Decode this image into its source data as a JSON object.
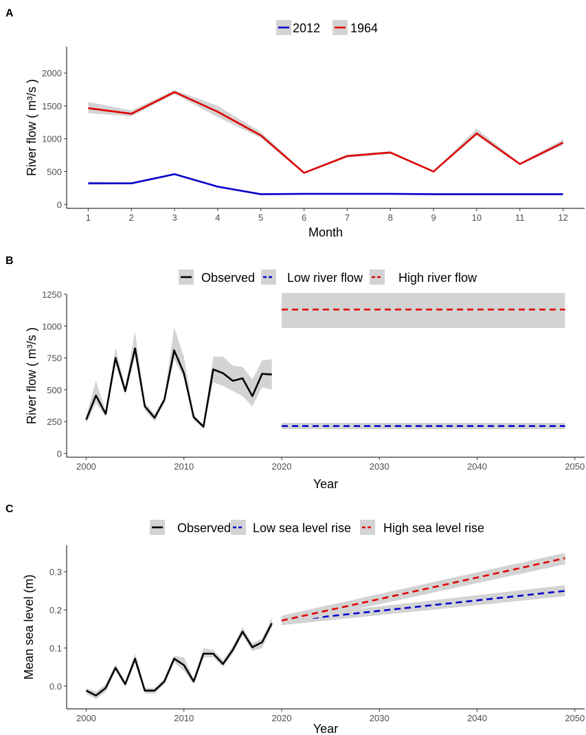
{
  "chart_data": [
    {
      "panel": "A",
      "type": "line",
      "xlabel": "Month",
      "ylabel": "River flow ( m³/s )",
      "xlim": [
        0.5,
        12.5
      ],
      "ylim": [
        -60,
        2400
      ],
      "xticks": [
        1,
        2,
        3,
        4,
        5,
        6,
        7,
        8,
        9,
        10,
        11,
        12
      ],
      "yticks": [
        0,
        500,
        1000,
        1500,
        2000
      ],
      "grid": false,
      "legend_position": "top",
      "x": [
        1,
        2,
        3,
        4,
        5,
        6,
        7,
        8,
        9,
        10,
        11,
        12
      ],
      "series": [
        {
          "name": "2012",
          "color": "#0000cc",
          "style": "solid",
          "values": [
            320,
            320,
            460,
            270,
            155,
            160,
            160,
            160,
            155,
            155,
            155,
            155
          ],
          "lower": [
            300,
            310,
            450,
            260,
            148,
            150,
            150,
            150,
            148,
            148,
            148,
            148
          ],
          "upper": [
            350,
            335,
            475,
            285,
            165,
            168,
            168,
            168,
            163,
            163,
            163,
            163
          ]
        },
        {
          "name": "1964",
          "color": "#e00000",
          "style": "solid",
          "values": [
            1465,
            1380,
            1710,
            1410,
            1050,
            480,
            735,
            790,
            500,
            1080,
            615,
            940
          ],
          "lower": [
            1390,
            1340,
            1680,
            1330,
            1010,
            470,
            715,
            770,
            490,
            1050,
            600,
            900
          ],
          "upper": [
            1560,
            1430,
            1740,
            1500,
            1100,
            495,
            760,
            810,
            515,
            1150,
            630,
            990
          ]
        }
      ]
    },
    {
      "panel": "B",
      "type": "line",
      "xlabel": "Year",
      "ylabel": "River flow ( m³/s )",
      "xlim": [
        1998,
        2051
      ],
      "ylim": [
        -30,
        1250
      ],
      "xticks": [
        2000,
        2010,
        2020,
        2030,
        2040,
        2050
      ],
      "yticks": [
        0,
        250,
        500,
        750,
        1000,
        1250
      ],
      "grid": false,
      "legend_position": "top",
      "series": [
        {
          "name": "Observed",
          "color": "#000000",
          "style": "solid",
          "x": [
            2000,
            2001,
            2002,
            2003,
            2004,
            2005,
            2006,
            2007,
            2008,
            2009,
            2010,
            2011,
            2012,
            2013,
            2014,
            2015,
            2016,
            2017,
            2018,
            2019
          ],
          "values": [
            265,
            455,
            310,
            750,
            490,
            825,
            370,
            280,
            420,
            810,
            630,
            285,
            210,
            660,
            630,
            570,
            590,
            450,
            625,
            620
          ],
          "lower": [
            235,
            395,
            285,
            700,
            460,
            760,
            340,
            250,
            400,
            740,
            590,
            265,
            195,
            560,
            530,
            490,
            450,
            370,
            520,
            500
          ],
          "upper": [
            295,
            570,
            335,
            830,
            520,
            960,
            400,
            310,
            445,
            990,
            760,
            305,
            225,
            760,
            760,
            690,
            680,
            580,
            730,
            740
          ]
        },
        {
          "name": "Low river flow",
          "color": "#0000cc",
          "style": "dashed",
          "x": [
            2020,
            2049
          ],
          "values": [
            215,
            215
          ],
          "lower": [
            190,
            190
          ],
          "upper": [
            240,
            240
          ]
        },
        {
          "name": "High river flow",
          "color": "#e00000",
          "style": "dashed",
          "x": [
            2020,
            2049
          ],
          "values": [
            1130,
            1130
          ],
          "lower": [
            985,
            985
          ],
          "upper": [
            1260,
            1260
          ]
        }
      ]
    },
    {
      "panel": "C",
      "type": "line",
      "xlabel": "Year",
      "ylabel": "Mean sea level (m)",
      "xlim": [
        1998,
        2051
      ],
      "ylim": [
        -0.06,
        0.37
      ],
      "xticks": [
        2000,
        2010,
        2020,
        2030,
        2040,
        2050
      ],
      "yticks": [
        0.0,
        0.1,
        0.2,
        0.3
      ],
      "grid": false,
      "legend_position": "top",
      "series": [
        {
          "name": "Observed",
          "color": "#000000",
          "style": "solid",
          "x": [
            2000,
            2001,
            2002,
            2003,
            2004,
            2005,
            2006,
            2007,
            2008,
            2009,
            2010,
            2011,
            2012,
            2013,
            2014,
            2015,
            2016,
            2017,
            2018,
            2019
          ],
          "values": [
            -0.012,
            -0.025,
            -0.005,
            0.048,
            0.005,
            0.072,
            -0.012,
            -0.012,
            0.012,
            0.072,
            0.055,
            0.012,
            0.085,
            0.085,
            0.058,
            0.095,
            0.143,
            0.102,
            0.115,
            0.165
          ],
          "lower": [
            -0.02,
            -0.035,
            -0.015,
            0.04,
            -0.002,
            0.06,
            -0.02,
            -0.02,
            0.005,
            0.062,
            0.04,
            0.005,
            0.075,
            0.075,
            0.05,
            0.085,
            0.133,
            0.092,
            0.1,
            0.155
          ],
          "upper": [
            -0.005,
            -0.015,
            0.005,
            0.056,
            0.012,
            0.085,
            -0.005,
            -0.005,
            0.02,
            0.08,
            0.075,
            0.02,
            0.1,
            0.095,
            0.068,
            0.105,
            0.155,
            0.112,
            0.125,
            0.18
          ]
        },
        {
          "name": "Low sea level rise",
          "color": "#0000cc",
          "style": "dashed",
          "x": [
            2020,
            2049
          ],
          "values": [
            0.17,
            0.25
          ],
          "lower": [
            0.16,
            0.236
          ],
          "upper": [
            0.18,
            0.265
          ]
        },
        {
          "name": "High sea level rise",
          "color": "#e00000",
          "style": "dashed",
          "x": [
            2020,
            2049
          ],
          "values": [
            0.172,
            0.336
          ],
          "lower": [
            0.16,
            0.32
          ],
          "upper": [
            0.185,
            0.35
          ]
        }
      ]
    }
  ],
  "panel_labels": [
    "A",
    "B",
    "C"
  ],
  "band_color": "#d3d3d3"
}
